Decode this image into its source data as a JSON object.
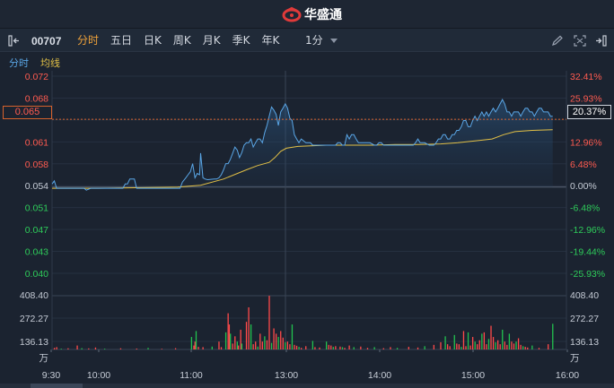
{
  "app": {
    "brand_name": "华盛通"
  },
  "toolbar": {
    "stock_code": "00707",
    "tabs": [
      "分时",
      "五日",
      "日K",
      "周K",
      "月K",
      "季K",
      "年K"
    ],
    "active_tab": "分时",
    "interval": "1分"
  },
  "legend": {
    "line_label": "分时",
    "avg_label": "均线"
  },
  "cursor": {
    "price": "0.065",
    "percent": "20.37%"
  },
  "colors": {
    "up": "#ff4a4a",
    "down": "#22c24f",
    "price_line": "#5aa6e6",
    "avg_line": "#e2c046",
    "accent": "#f0a23a",
    "cursor_line": "#d6622d"
  },
  "chart_data": {
    "type": "line",
    "price_labels": [
      "0.072",
      "0.068",
      "0.065",
      "0.061",
      "0.058",
      "0.054",
      "0.051",
      "0.047",
      "0.043",
      "0.040"
    ],
    "percent_labels": [
      "32.41%",
      "25.93%",
      "20.37%",
      "12.96%",
      "6.48%",
      "0.00%",
      "-6.48%",
      "-12.96%",
      "-19.44%",
      "-25.93%"
    ],
    "ylim": [
      0.04,
      0.072
    ],
    "prev_close": 0.054,
    "time_labels": [
      "9:30",
      "10:00",
      "11:00",
      "13:00",
      "14:00",
      "15:00",
      "16:00"
    ],
    "volume_labels": [
      "408.40",
      "272.27",
      "136.13",
      "万"
    ],
    "volume_max": 408.4,
    "series": [
      {
        "kind": "price",
        "points": [
          [
            0,
            0.0545
          ],
          [
            2,
            0.055
          ],
          [
            4,
            0.0538
          ],
          [
            28,
            0.0538
          ],
          [
            30,
            0.0535
          ],
          [
            34,
            0.0538
          ],
          [
            45,
            0.0538
          ],
          [
            62,
            0.0538
          ],
          [
            64,
            0.0545
          ],
          [
            66,
            0.0545
          ],
          [
            68,
            0.0553
          ],
          [
            72,
            0.0553
          ],
          [
            74,
            0.0538
          ],
          [
            105,
            0.0538
          ],
          [
            112,
            0.0538
          ],
          [
            114,
            0.0548
          ],
          [
            117,
            0.0555
          ],
          [
            119,
            0.056
          ],
          [
            121,
            0.0565
          ],
          [
            123,
            0.0578
          ],
          [
            125,
            0.0555
          ],
          [
            127,
            0.0562
          ],
          [
            129,
            0.056
          ],
          [
            130,
            0.0595
          ],
          [
            132,
            0.0555
          ],
          [
            134,
            0.0553
          ],
          [
            136,
            0.0552
          ],
          [
            142,
            0.0553
          ],
          [
            144,
            0.0553
          ],
          [
            146,
            0.0555
          ],
          [
            148,
            0.056
          ],
          [
            150,
            0.0568
          ],
          [
            152,
            0.0578
          ],
          [
            154,
            0.0578
          ],
          [
            156,
            0.0585
          ],
          [
            158,
            0.0595
          ],
          [
            160,
            0.0605
          ],
          [
            162,
            0.06
          ],
          [
            164,
            0.0588
          ],
          [
            166,
            0.0596
          ],
          [
            168,
            0.0608
          ],
          [
            170,
            0.0612
          ],
          [
            172,
            0.0612
          ],
          [
            174,
            0.0618
          ],
          [
            176,
            0.0605
          ],
          [
            178,
            0.0612
          ],
          [
            180,
            0.0618
          ],
          [
            182,
            0.0618
          ],
          [
            184,
            0.0612
          ],
          [
            186,
            0.0628
          ],
          [
            188,
            0.064
          ],
          [
            190,
            0.0655
          ],
          [
            192,
            0.067
          ],
          [
            194,
            0.0665
          ],
          [
            196,
            0.0658
          ],
          [
            198,
            0.064
          ],
          [
            200,
            0.0662
          ],
          [
            202,
            0.0668
          ],
          [
            204,
            0.0675
          ],
          [
            206,
            0.0668
          ],
          [
            208,
            0.0652
          ],
          [
            210,
            0.0648
          ],
          [
            212,
            0.0625
          ],
          [
            214,
            0.0618
          ],
          [
            216,
            0.0612
          ],
          [
            218,
            0.0618
          ],
          [
            222,
            0.0612
          ],
          [
            226,
            0.0612
          ],
          [
            228,
            0.0608
          ],
          [
            232,
            0.0608
          ],
          [
            236,
            0.0608
          ],
          [
            240,
            0.0608
          ],
          [
            244,
            0.0608
          ],
          [
            248,
            0.0608
          ],
          [
            250,
            0.0612
          ],
          [
            252,
            0.0612
          ],
          [
            254,
            0.0608
          ],
          [
            256,
            0.0608
          ],
          [
            258,
            0.0625
          ],
          [
            260,
            0.0618
          ],
          [
            262,
            0.0625
          ],
          [
            264,
            0.0625
          ],
          [
            266,
            0.0618
          ],
          [
            268,
            0.0612
          ],
          [
            270,
            0.0612
          ],
          [
            274,
            0.0612
          ],
          [
            278,
            0.0612
          ],
          [
            282,
            0.0608
          ],
          [
            284,
            0.0608
          ],
          [
            286,
            0.0612
          ],
          [
            288,
            0.0612
          ],
          [
            290,
            0.0608
          ],
          [
            300,
            0.0608
          ],
          [
            310,
            0.0608
          ],
          [
            316,
            0.0608
          ],
          [
            318,
            0.0612
          ],
          [
            320,
            0.0618
          ],
          [
            322,
            0.0612
          ],
          [
            326,
            0.0612
          ],
          [
            330,
            0.0608
          ],
          [
            334,
            0.0608
          ],
          [
            336,
            0.0612
          ],
          [
            338,
            0.0618
          ],
          [
            340,
            0.0618
          ],
          [
            342,
            0.0625
          ],
          [
            344,
            0.0625
          ],
          [
            346,
            0.0618
          ],
          [
            348,
            0.0618
          ],
          [
            350,
            0.0625
          ],
          [
            352,
            0.0625
          ],
          [
            354,
            0.0632
          ],
          [
            356,
            0.0632
          ],
          [
            358,
            0.0638
          ],
          [
            360,
            0.0648
          ],
          [
            362,
            0.0648
          ],
          [
            364,
            0.0638
          ],
          [
            366,
            0.0638
          ],
          [
            368,
            0.0648
          ],
          [
            370,
            0.0655
          ],
          [
            372,
            0.0648
          ],
          [
            374,
            0.0655
          ],
          [
            376,
            0.0662
          ],
          [
            378,
            0.0655
          ],
          [
            380,
            0.0662
          ],
          [
            382,
            0.0655
          ],
          [
            384,
            0.0662
          ],
          [
            386,
            0.0668
          ],
          [
            388,
            0.0662
          ],
          [
            390,
            0.0668
          ],
          [
            392,
            0.0675
          ],
          [
            394,
            0.0682
          ],
          [
            396,
            0.0675
          ],
          [
            398,
            0.0662
          ],
          [
            400,
            0.0662
          ],
          [
            402,
            0.0655
          ],
          [
            404,
            0.0662
          ],
          [
            406,
            0.0662
          ],
          [
            408,
            0.0662
          ],
          [
            410,
            0.0655
          ],
          [
            412,
            0.0662
          ],
          [
            414,
            0.0668
          ],
          [
            416,
            0.0668
          ],
          [
            418,
            0.0662
          ],
          [
            420,
            0.0662
          ],
          [
            422,
            0.0655
          ],
          [
            424,
            0.0662
          ],
          [
            426,
            0.0668
          ],
          [
            428,
            0.0668
          ],
          [
            430,
            0.0662
          ],
          [
            432,
            0.0662
          ],
          [
            434,
            0.0662
          ],
          [
            436,
            0.0655
          ],
          [
            438,
            0.0655
          ]
        ]
      },
      {
        "kind": "average",
        "points": [
          [
            0,
            0.0538
          ],
          [
            40,
            0.0538
          ],
          [
            80,
            0.0539
          ],
          [
            110,
            0.054
          ],
          [
            130,
            0.0543
          ],
          [
            150,
            0.0553
          ],
          [
            170,
            0.0568
          ],
          [
            180,
            0.0575
          ],
          [
            190,
            0.058
          ],
          [
            195,
            0.0588
          ],
          [
            200,
            0.0598
          ],
          [
            205,
            0.0603
          ],
          [
            215,
            0.0606
          ],
          [
            240,
            0.0608
          ],
          [
            280,
            0.0608
          ],
          [
            300,
            0.0609
          ],
          [
            320,
            0.0609
          ],
          [
            340,
            0.061
          ],
          [
            355,
            0.0612
          ],
          [
            370,
            0.0615
          ],
          [
            385,
            0.0618
          ],
          [
            395,
            0.0625
          ],
          [
            405,
            0.063
          ],
          [
            420,
            0.0632
          ],
          [
            438,
            0.0633
          ]
        ]
      }
    ],
    "volume": [
      [
        2,
        12
      ],
      [
        4,
        18
      ],
      [
        8,
        6
      ],
      [
        14,
        9
      ],
      [
        22,
        30
      ],
      [
        26,
        10
      ],
      [
        32,
        8
      ],
      [
        38,
        15
      ],
      [
        46,
        6
      ],
      [
        60,
        9
      ],
      [
        74,
        7
      ],
      [
        84,
        12
      ],
      [
        96,
        5
      ],
      [
        108,
        10
      ],
      [
        122,
        95
      ],
      [
        124,
        30
      ],
      [
        125,
        60
      ],
      [
        126,
        140
      ],
      [
        128,
        20
      ],
      [
        132,
        18
      ],
      [
        140,
        22
      ],
      [
        146,
        60
      ],
      [
        148,
        18
      ],
      [
        152,
        130
      ],
      [
        154,
        275
      ],
      [
        155,
        190
      ],
      [
        156,
        120
      ],
      [
        158,
        45
      ],
      [
        160,
        100
      ],
      [
        162,
        60
      ],
      [
        163,
        30
      ],
      [
        165,
        150
      ],
      [
        166,
        45
      ],
      [
        170,
        210
      ],
      [
        172,
        320
      ],
      [
        174,
        190
      ],
      [
        176,
        40
      ],
      [
        178,
        60
      ],
      [
        180,
        22
      ],
      [
        182,
        120
      ],
      [
        184,
        60
      ],
      [
        186,
        100
      ],
      [
        188,
        70
      ],
      [
        190,
        408
      ],
      [
        192,
        50
      ],
      [
        194,
        160
      ],
      [
        196,
        120
      ],
      [
        198,
        95
      ],
      [
        200,
        140
      ],
      [
        202,
        90
      ],
      [
        204,
        55
      ],
      [
        206,
        60
      ],
      [
        208,
        40
      ],
      [
        210,
        190
      ],
      [
        212,
        35
      ],
      [
        214,
        28
      ],
      [
        216,
        20
      ],
      [
        218,
        12
      ],
      [
        222,
        25
      ],
      [
        228,
        65
      ],
      [
        230,
        18
      ],
      [
        234,
        15
      ],
      [
        240,
        60
      ],
      [
        242,
        35
      ],
      [
        244,
        30
      ],
      [
        246,
        20
      ],
      [
        248,
        25
      ],
      [
        252,
        22
      ],
      [
        254,
        18
      ],
      [
        256,
        12
      ],
      [
        260,
        30
      ],
      [
        264,
        18
      ],
      [
        270,
        22
      ],
      [
        276,
        12
      ],
      [
        282,
        18
      ],
      [
        290,
        10
      ],
      [
        296,
        18
      ],
      [
        302,
        12
      ],
      [
        312,
        20
      ],
      [
        320,
        15
      ],
      [
        326,
        25
      ],
      [
        334,
        35
      ],
      [
        340,
        55
      ],
      [
        344,
        100
      ],
      [
        346,
        40
      ],
      [
        348,
        25
      ],
      [
        352,
        110
      ],
      [
        354,
        45
      ],
      [
        356,
        40
      ],
      [
        358,
        20
      ],
      [
        360,
        140
      ],
      [
        362,
        25
      ],
      [
        364,
        130
      ],
      [
        366,
        30
      ],
      [
        368,
        95
      ],
      [
        370,
        60
      ],
      [
        372,
        40
      ],
      [
        374,
        70
      ],
      [
        376,
        120
      ],
      [
        378,
        130
      ],
      [
        380,
        40
      ],
      [
        382,
        80
      ],
      [
        384,
        180
      ],
      [
        386,
        95
      ],
      [
        388,
        55
      ],
      [
        390,
        70
      ],
      [
        392,
        40
      ],
      [
        394,
        150
      ],
      [
        396,
        60
      ],
      [
        398,
        35
      ],
      [
        400,
        120
      ],
      [
        402,
        60
      ],
      [
        404,
        45
      ],
      [
        406,
        60
      ],
      [
        408,
        85
      ],
      [
        410,
        35
      ],
      [
        412,
        25
      ],
      [
        414,
        20
      ],
      [
        416,
        15
      ],
      [
        420,
        30
      ],
      [
        426,
        12
      ],
      [
        434,
        40
      ],
      [
        438,
        195
      ]
    ]
  }
}
